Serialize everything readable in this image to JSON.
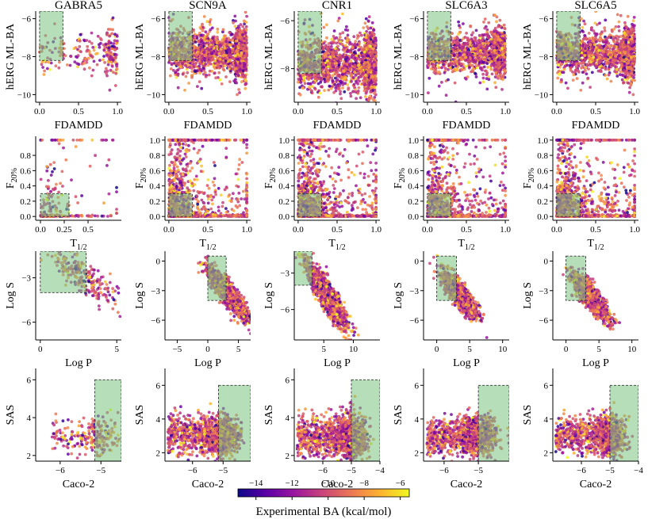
{
  "colorbar": {
    "label": "Experimental BA (kcal/mol)",
    "range": [
      -15,
      -5.5
    ],
    "ticks": [
      "−14",
      "−12",
      "−10",
      "−8",
      "−6"
    ],
    "tick_values": [
      -14,
      -12,
      -10,
      -8,
      -6
    ],
    "colormap": [
      "#0d0887",
      "#5c01a6",
      "#9c179e",
      "#cc4778",
      "#ed7953",
      "#fdb42f",
      "#f0f921"
    ]
  },
  "columns": [
    "GABRA5",
    "SCN9A",
    "CNR1",
    "SLC6A3",
    "SLC6A5"
  ],
  "rows": [
    {
      "xlabel": "FDAMDD",
      "ylabel": "hERG ML-BA",
      "xlabel_sub": "",
      "ylabel_sub": ""
    },
    {
      "xlabel": "T",
      "xlabel_sub": "1/2",
      "ylabel": "F",
      "ylabel_sub": "20%"
    },
    {
      "xlabel": "Log P",
      "ylabel": "Log S",
      "xlabel_sub": "",
      "ylabel_sub": ""
    },
    {
      "xlabel": "Caco-2",
      "ylabel": "SAS",
      "xlabel_sub": "",
      "ylabel_sub": ""
    }
  ],
  "chart_data": [
    {
      "type": "scatter",
      "row": 0,
      "col": 0,
      "xlim": [
        -0.05,
        1.05
      ],
      "ylim": [
        -10.4,
        -5.6
      ],
      "xticks": [
        0.0,
        0.5,
        1.0
      ],
      "xtick_labels": [
        "0.0",
        "0.5",
        "1.0"
      ],
      "yticks": [
        -10,
        -8,
        -6
      ],
      "ytick_labels": [
        "−10",
        "−8",
        "−6"
      ],
      "region": {
        "x": [
          0,
          0.3
        ],
        "y": [
          -8.2,
          -5.6
        ]
      },
      "n_points": 230,
      "seed": 11,
      "kind": "herg"
    },
    {
      "type": "scatter",
      "row": 0,
      "col": 1,
      "xlim": [
        -0.05,
        1.05
      ],
      "ylim": [
        -10.4,
        -5.6
      ],
      "xticks": [
        0.0,
        0.5,
        1.0
      ],
      "xtick_labels": [
        "0.0",
        "0.5",
        "1.0"
      ],
      "yticks": [
        -10,
        -8,
        -6
      ],
      "ytick_labels": [
        "−10",
        "−8",
        "−6"
      ],
      "region": {
        "x": [
          0,
          0.3
        ],
        "y": [
          -8.2,
          -5.6
        ]
      },
      "n_points": 1800,
      "seed": 12,
      "kind": "herg"
    },
    {
      "type": "scatter",
      "row": 0,
      "col": 2,
      "xlim": [
        -0.05,
        1.05
      ],
      "ylim": [
        -9.4,
        -5.6
      ],
      "xticks": [
        0.0,
        0.5,
        1.0
      ],
      "xtick_labels": [
        "0.0",
        "0.5",
        "1.0"
      ],
      "yticks": [
        -8,
        -6
      ],
      "ytick_labels": [
        "−8",
        "−6"
      ],
      "region": {
        "x": [
          0,
          0.3
        ],
        "y": [
          -8.2,
          -5.6
        ]
      },
      "n_points": 1900,
      "seed": 13,
      "kind": "herg"
    },
    {
      "type": "scatter",
      "row": 0,
      "col": 3,
      "xlim": [
        -0.05,
        1.05
      ],
      "ylim": [
        -10.4,
        -5.6
      ],
      "xticks": [
        0.0,
        0.5,
        1.0
      ],
      "xtick_labels": [
        "0.0",
        "0.5",
        "1.0"
      ],
      "yticks": [
        -10,
        -8,
        -6
      ],
      "ytick_labels": [
        "−10",
        "−8",
        "−6"
      ],
      "region": {
        "x": [
          0,
          0.3
        ],
        "y": [
          -8.2,
          -5.6
        ]
      },
      "n_points": 1500,
      "seed": 14,
      "kind": "herg"
    },
    {
      "type": "scatter",
      "row": 0,
      "col": 4,
      "xlim": [
        -0.05,
        1.05
      ],
      "ylim": [
        -10.4,
        -5.6
      ],
      "xticks": [
        0.0,
        0.5,
        1.0
      ],
      "xtick_labels": [
        "0.0",
        "0.5",
        "1.0"
      ],
      "yticks": [
        -10,
        -8,
        -6
      ],
      "ytick_labels": [
        "−10",
        "−8",
        "−6"
      ],
      "region": {
        "x": [
          0,
          0.3
        ],
        "y": [
          -8.2,
          -5.6
        ]
      },
      "n_points": 1700,
      "seed": 15,
      "kind": "herg"
    },
    {
      "type": "scatter",
      "row": 1,
      "col": 0,
      "xlim": [
        -0.05,
        0.85
      ],
      "ylim": [
        -0.05,
        1.05
      ],
      "xticks": [
        0.0,
        0.25,
        0.5
      ],
      "xtick_labels": [
        "0.0",
        "0.25",
        "0.5"
      ],
      "yticks": [
        0.0,
        0.2,
        0.4,
        0.6,
        0.8
      ],
      "ytick_labels": [
        "0.0",
        "0.2",
        "0.4",
        "0.6",
        "0.8"
      ],
      "region": {
        "x": [
          0,
          0.3
        ],
        "y": [
          0,
          0.3
        ]
      },
      "n_points": 230,
      "seed": 21,
      "kind": "fhalf",
      "xmax": 0.8
    },
    {
      "type": "scatter",
      "row": 1,
      "col": 1,
      "xlim": [
        -0.05,
        1.05
      ],
      "ylim": [
        -0.05,
        1.05
      ],
      "xticks": [
        0.0,
        0.5,
        1.0
      ],
      "xtick_labels": [
        "0.0",
        "0.5",
        "1.0"
      ],
      "yticks": [
        0.0,
        0.2,
        0.4,
        0.6,
        0.8,
        1.0
      ],
      "ytick_labels": [
        "0.0",
        "0.2",
        "0.4",
        "0.6",
        "0.8",
        "1.0"
      ],
      "region": {
        "x": [
          0,
          0.3
        ],
        "y": [
          0,
          0.3
        ]
      },
      "n_points": 1500,
      "seed": 22,
      "kind": "fhalf",
      "xmax": 1.0
    },
    {
      "type": "scatter",
      "row": 1,
      "col": 2,
      "xlim": [
        -0.05,
        1.05
      ],
      "ylim": [
        -0.05,
        1.05
      ],
      "xticks": [
        0.0,
        0.5,
        1.0
      ],
      "xtick_labels": [
        "0.0",
        "0.5",
        "1.0"
      ],
      "yticks": [
        0.0,
        0.2,
        0.4,
        0.6,
        0.8,
        1.0
      ],
      "ytick_labels": [
        "0.0",
        "0.2",
        "0.4",
        "0.6",
        "0.8",
        "1.0"
      ],
      "region": {
        "x": [
          0,
          0.3
        ],
        "y": [
          0,
          0.3
        ]
      },
      "n_points": 1600,
      "seed": 23,
      "kind": "fhalf",
      "xmax": 1.0
    },
    {
      "type": "scatter",
      "row": 1,
      "col": 3,
      "xlim": [
        -0.05,
        1.05
      ],
      "ylim": [
        -0.05,
        1.05
      ],
      "xticks": [
        0.0,
        0.5,
        1.0
      ],
      "xtick_labels": [
        "0.0",
        "0.5",
        "1.0"
      ],
      "yticks": [
        0.0,
        0.2,
        0.4,
        0.6,
        0.8,
        1.0
      ],
      "ytick_labels": [
        "0.0",
        "0.2",
        "0.4",
        "0.6",
        "0.8",
        "1.0"
      ],
      "region": {
        "x": [
          0,
          0.3
        ],
        "y": [
          0,
          0.3
        ]
      },
      "n_points": 1300,
      "seed": 24,
      "kind": "fhalf",
      "xmax": 1.0
    },
    {
      "type": "scatter",
      "row": 1,
      "col": 4,
      "xlim": [
        -0.05,
        1.05
      ],
      "ylim": [
        -0.05,
        1.05
      ],
      "xticks": [
        0.0,
        0.5,
        1.0
      ],
      "xtick_labels": [
        "0.0",
        "0.5",
        "1.0"
      ],
      "yticks": [
        0.0,
        0.2,
        0.4,
        0.6,
        0.8,
        1.0
      ],
      "ytick_labels": [
        "0.0",
        "0.2",
        "0.4",
        "0.6",
        "0.8",
        "1.0"
      ],
      "region": {
        "x": [
          0,
          0.3
        ],
        "y": [
          0,
          0.3
        ]
      },
      "n_points": 1500,
      "seed": 25,
      "kind": "fhalf",
      "xmax": 1.0
    },
    {
      "type": "scatter",
      "row": 2,
      "col": 0,
      "xlim": [
        -0.3,
        5.3
      ],
      "ylim": [
        -7.2,
        -1.2
      ],
      "xticks": [
        0,
        5
      ],
      "xtick_labels": [
        "0",
        "5"
      ],
      "yticks": [
        -6,
        -3
      ],
      "ytick_labels": [
        "−6",
        "−3"
      ],
      "region": {
        "x": [
          0,
          3
        ],
        "y": [
          -4,
          -1.2
        ]
      },
      "n_points": 230,
      "seed": 31,
      "kind": "logp",
      "xc": 2.8,
      "xs": 1.1
    },
    {
      "type": "scatter",
      "row": 2,
      "col": 1,
      "xlim": [
        -7,
        7
      ],
      "ylim": [
        -8,
        1
      ],
      "xticks": [
        -5,
        0,
        5
      ],
      "xtick_labels": [
        "−5",
        "0",
        "5"
      ],
      "yticks": [
        -6,
        -3,
        0
      ],
      "ytick_labels": [
        "−6",
        "−3",
        "0"
      ],
      "region": {
        "x": [
          0,
          3
        ],
        "y": [
          -4,
          0.5
        ]
      },
      "n_points": 1500,
      "seed": 32,
      "kind": "logp",
      "xc": 3.2,
      "xs": 1.6
    },
    {
      "type": "scatter",
      "row": 2,
      "col": 2,
      "xlim": [
        0,
        14.5
      ],
      "ylim": [
        -8.5,
        -1.2
      ],
      "xticks": [
        5,
        10
      ],
      "xtick_labels": [
        "5",
        "10"
      ],
      "yticks": [
        -6,
        -3
      ],
      "ytick_labels": [
        "−6",
        "−3"
      ],
      "region": {
        "x": [
          0,
          3
        ],
        "y": [
          -4,
          -1.2
        ]
      },
      "n_points": 1600,
      "seed": 33,
      "kind": "logp",
      "xc": 5.5,
      "xs": 1.6
    },
    {
      "type": "scatter",
      "row": 2,
      "col": 3,
      "xlim": [
        -2,
        11
      ],
      "ylim": [
        -8,
        1
      ],
      "xticks": [
        0,
        5,
        10
      ],
      "xtick_labels": [
        "0",
        "5",
        "10"
      ],
      "yticks": [
        -6,
        -3,
        0
      ],
      "ytick_labels": [
        "−6",
        "−3",
        "0"
      ],
      "region": {
        "x": [
          0,
          3
        ],
        "y": [
          -4,
          0.5
        ]
      },
      "n_points": 1300,
      "seed": 34,
      "kind": "logp",
      "xc": 3.6,
      "xs": 1.3
    },
    {
      "type": "scatter",
      "row": 2,
      "col": 4,
      "xlim": [
        -2,
        11
      ],
      "ylim": [
        -8,
        1
      ],
      "xticks": [
        0,
        5,
        10
      ],
      "xtick_labels": [
        "0",
        "5",
        "10"
      ],
      "yticks": [
        -6,
        -3,
        0
      ],
      "ytick_labels": [
        "−6",
        "−3",
        "0"
      ],
      "region": {
        "x": [
          0,
          3
        ],
        "y": [
          -4,
          0.5
        ]
      },
      "n_points": 1400,
      "seed": 35,
      "kind": "logp",
      "xc": 3.8,
      "xs": 1.3
    },
    {
      "type": "scatter",
      "row": 3,
      "col": 0,
      "xlim": [
        -6.6,
        -4.5
      ],
      "ylim": [
        1.7,
        6.6
      ],
      "xticks": [
        -6,
        -5
      ],
      "xtick_labels": [
        "−6",
        "−5"
      ],
      "yticks": [
        2,
        4,
        6
      ],
      "ytick_labels": [
        "2",
        "4",
        "6"
      ],
      "region": {
        "x": [
          -5.15,
          -4.5
        ],
        "y": [
          1.7,
          6
        ]
      },
      "n_points": 230,
      "seed": 41,
      "kind": "caco",
      "xmin": -6.2
    },
    {
      "type": "scatter",
      "row": 3,
      "col": 1,
      "xlim": [
        -6.9,
        -4.1
      ],
      "ylim": [
        1.5,
        7
      ],
      "xticks": [
        -6,
        -5
      ],
      "xtick_labels": [
        "−6",
        "−5"
      ],
      "yticks": [
        2,
        4,
        6
      ],
      "ytick_labels": [
        "2",
        "4",
        "6"
      ],
      "region": {
        "x": [
          -5.15,
          -4.1
        ],
        "y": [
          1.5,
          6
        ]
      },
      "n_points": 1500,
      "seed": 42,
      "kind": "caco",
      "xmin": -6.8
    },
    {
      "type": "scatter",
      "row": 3,
      "col": 2,
      "xlim": [
        -7,
        -4
      ],
      "ylim": [
        1.7,
        6.6
      ],
      "xticks": [
        -6,
        -5,
        -4
      ],
      "xtick_labels": [
        "−6",
        "−5",
        "−4"
      ],
      "yticks": [
        2,
        4,
        6
      ],
      "ytick_labels": [
        "2",
        "4",
        "6"
      ],
      "region": {
        "x": [
          -5,
          -4
        ],
        "y": [
          1.7,
          6
        ]
      },
      "n_points": 1600,
      "seed": 43,
      "kind": "caco",
      "xmin": -6.9
    },
    {
      "type": "scatter",
      "row": 3,
      "col": 3,
      "xlim": [
        -6.6,
        -4.1
      ],
      "ylim": [
        1.5,
        7
      ],
      "xticks": [
        -6,
        -5
      ],
      "xtick_labels": [
        "−6",
        "−5"
      ],
      "yticks": [
        2,
        4,
        6
      ],
      "ytick_labels": [
        "2",
        "4",
        "6"
      ],
      "region": {
        "x": [
          -5,
          -4.1
        ],
        "y": [
          1.5,
          6
        ]
      },
      "n_points": 1300,
      "seed": 44,
      "kind": "caco",
      "xmin": -6.5
    },
    {
      "type": "scatter",
      "row": 3,
      "col": 4,
      "xlim": [
        -7,
        -4
      ],
      "ylim": [
        1.5,
        7
      ],
      "xticks": [
        -6,
        -5,
        -4
      ],
      "xtick_labels": [
        "−6",
        "−5",
        "−4"
      ],
      "yticks": [
        2,
        4,
        6
      ],
      "ytick_labels": [
        "2",
        "4",
        "6"
      ],
      "region": {
        "x": [
          -5,
          -4
        ],
        "y": [
          1.5,
          6
        ]
      },
      "n_points": 1400,
      "seed": 45,
      "kind": "caco",
      "xmin": -6.9
    }
  ]
}
